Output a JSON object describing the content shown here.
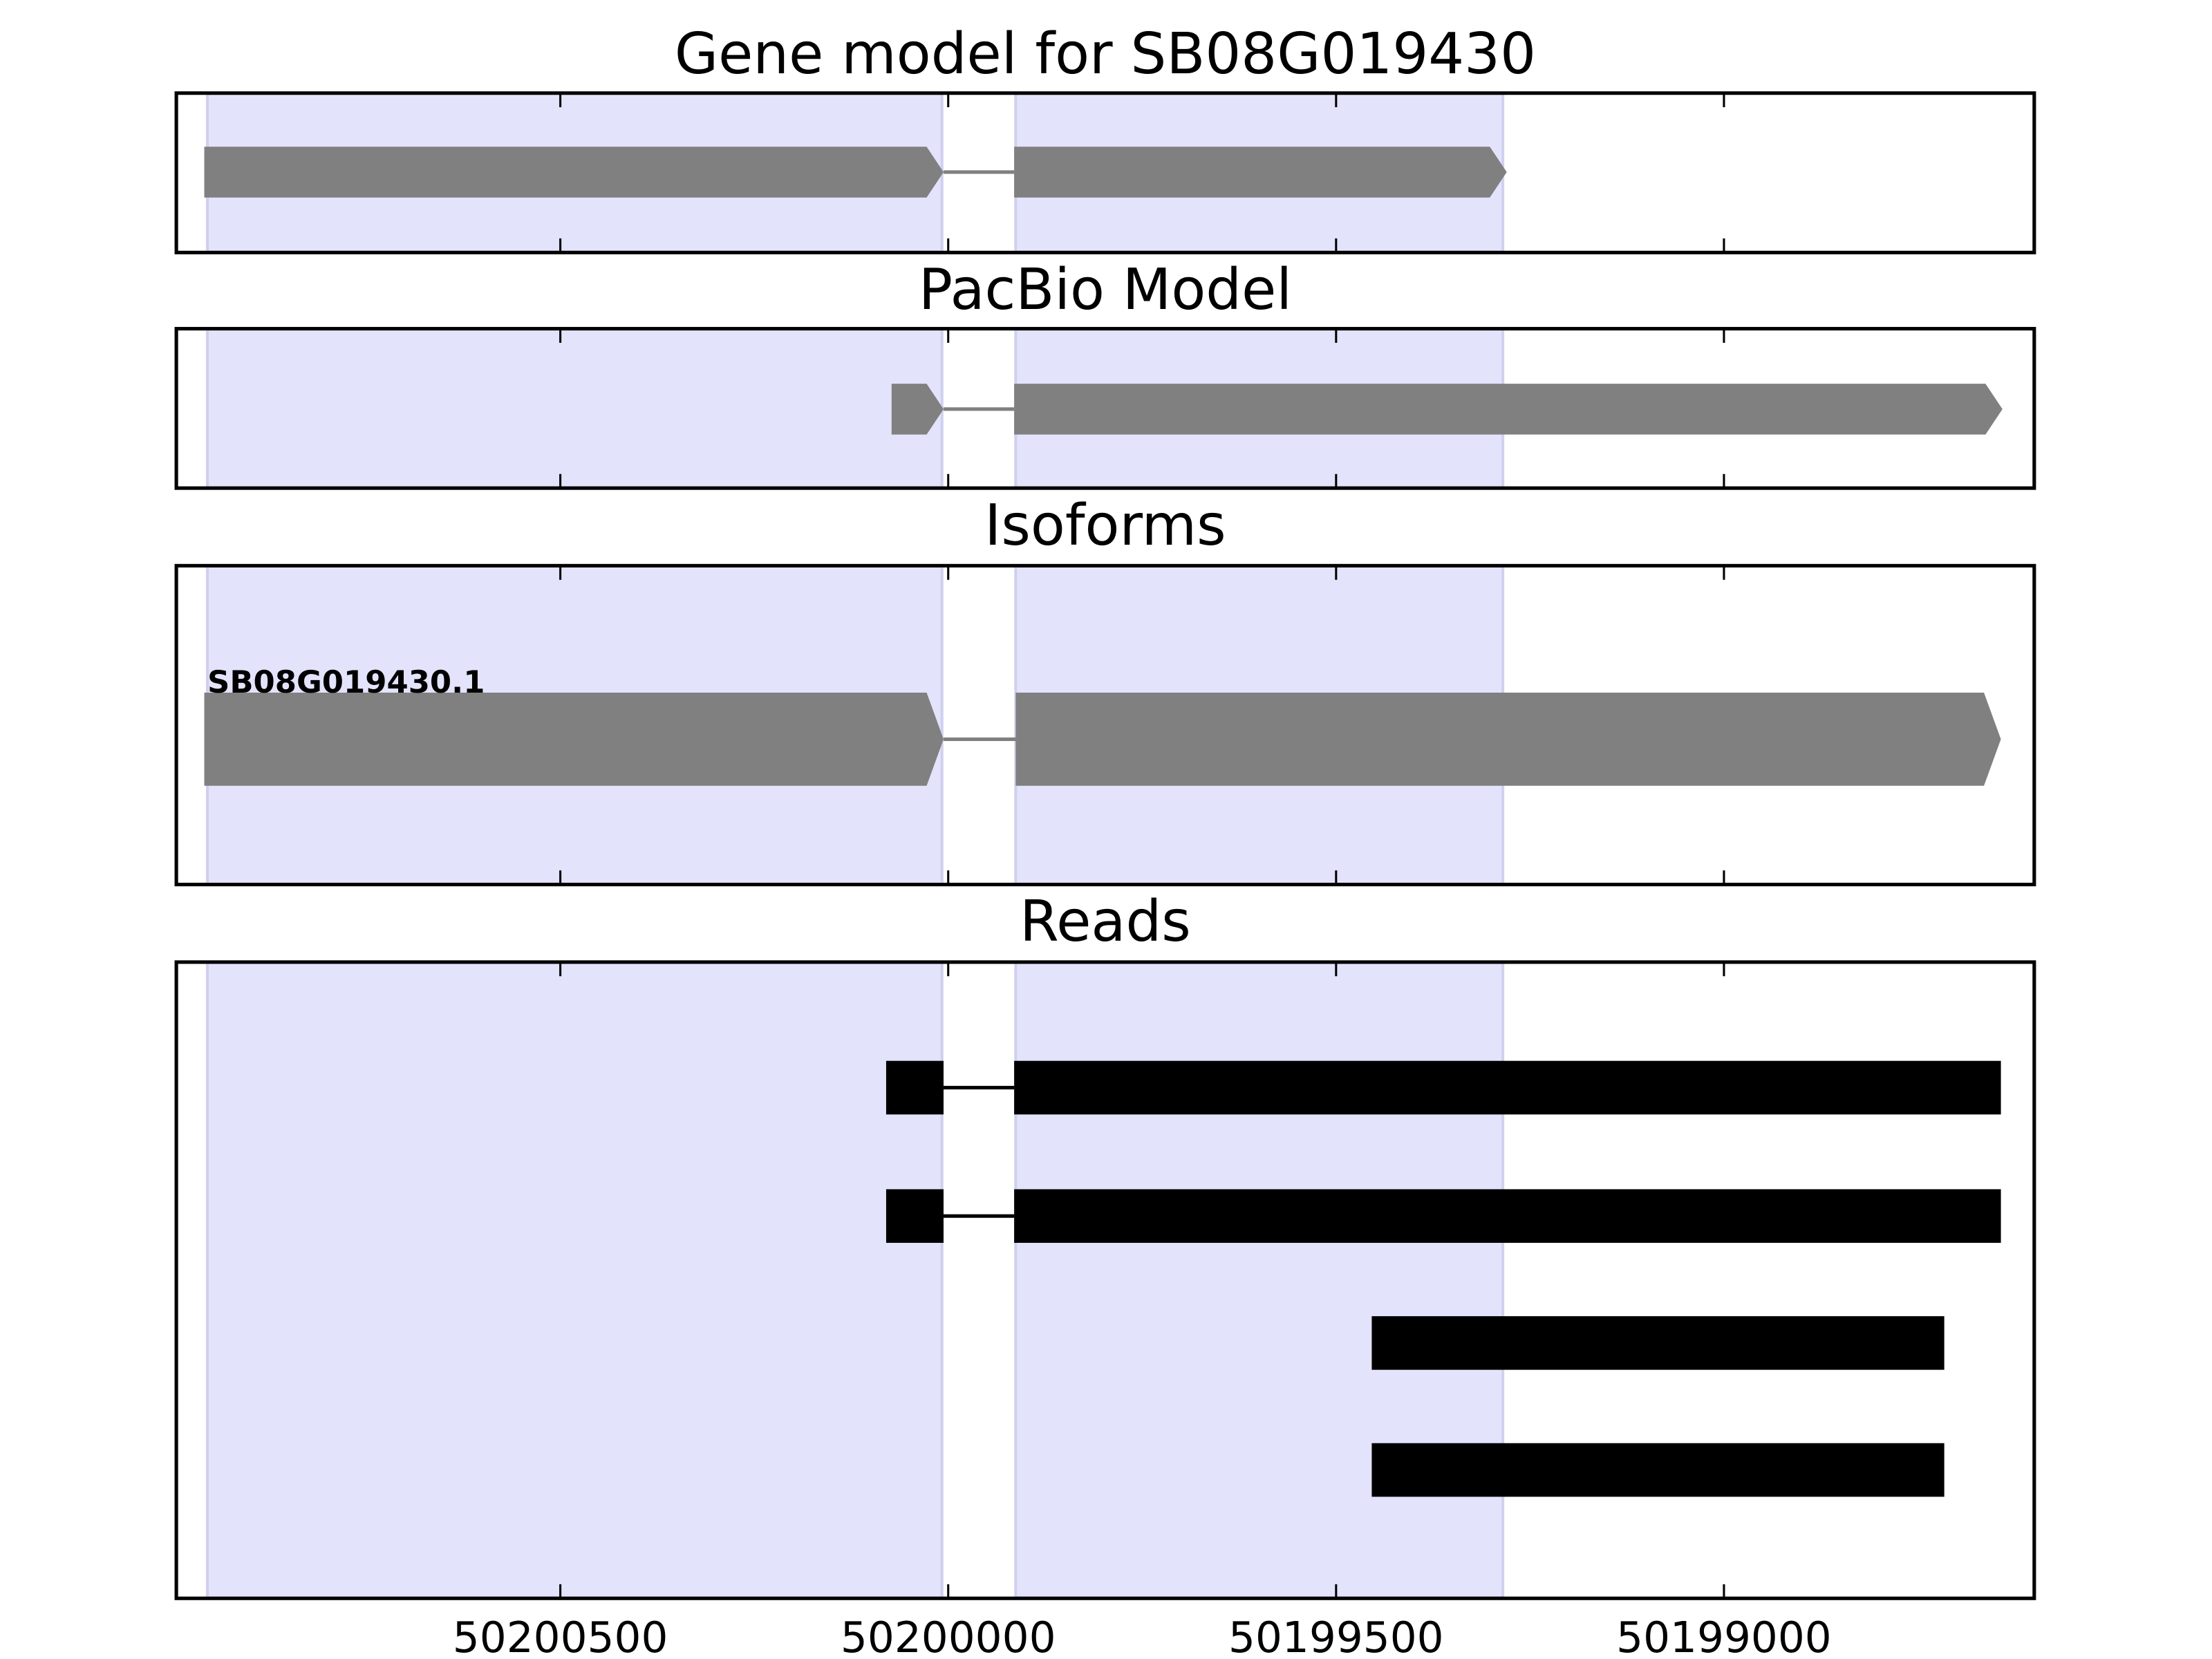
{
  "chart_data": [
    {
      "type": "gene",
      "title": "Gene model for SB08G019430",
      "color": "#808080",
      "highlight_color": "#e3e3fc",
      "xlim": [
        50200995,
        50198600
      ],
      "xticks": [
        50200500,
        50200000,
        50199500,
        50199000
      ],
      "highlights": [
        [
          50200955,
          50200008
        ],
        [
          50199913,
          50199285
        ]
      ],
      "tracks": [
        {
          "exons": [
            [
              50200959,
              50200006
            ],
            [
              50199915,
              50199280
            ]
          ]
        }
      ]
    },
    {
      "type": "gene",
      "title": "PacBio Model",
      "color": "#808080",
      "highlight_color": "#e3e3fc",
      "xlim": [
        50200995,
        50198600
      ],
      "xticks": [
        50200500,
        50200000,
        50199500,
        50199000
      ],
      "highlights": [
        [
          50200955,
          50200008
        ],
        [
          50199913,
          50199285
        ]
      ],
      "tracks": [
        {
          "exons": [
            [
              50200073,
              50200006
            ],
            [
              50199915,
              50198641
            ]
          ]
        }
      ]
    },
    {
      "type": "gene",
      "title": "Isoforms",
      "color": "#808080",
      "highlight_color": "#e3e3fc",
      "xlim": [
        50200995,
        50198600
      ],
      "xticks": [
        50200500,
        50200000,
        50199500,
        50199000
      ],
      "highlights": [
        [
          50200955,
          50200008
        ],
        [
          50199913,
          50199285
        ]
      ],
      "tracks": [
        {
          "name": "SB08G019430.1",
          "exons": [
            [
              50200959,
              50200006
            ],
            [
              50199913,
              50198643
            ]
          ]
        }
      ]
    },
    {
      "type": "reads",
      "title": "Reads",
      "color": "#000000",
      "highlight_color": "#e3e3fc",
      "xlim": [
        50200995,
        50198600
      ],
      "xticks": [
        50200500,
        50200000,
        50199500,
        50199000
      ],
      "highlights": [
        [
          50200955,
          50200008
        ],
        [
          50199913,
          50199285
        ]
      ],
      "tracks": [
        {
          "exons": [
            [
              50200080,
              50200006
            ],
            [
              50199915,
              50198643
            ]
          ]
        },
        {
          "exons": [
            [
              50200080,
              50200006
            ],
            [
              50199915,
              50198643
            ]
          ]
        },
        {
          "exons": [
            [
              50199454,
              50198716
            ]
          ]
        },
        {
          "exons": [
            [
              50199454,
              50198716
            ]
          ]
        }
      ]
    }
  ]
}
